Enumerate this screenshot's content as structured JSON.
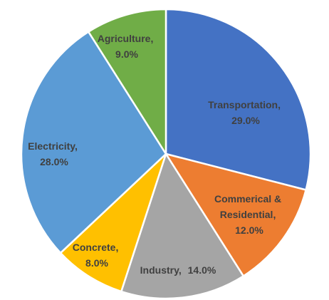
{
  "chart_data": {
    "type": "pie",
    "title": "",
    "slices": [
      {
        "label": "Transportation,",
        "value_label": "29.0%",
        "value": 29.0,
        "color": "#4472c4"
      },
      {
        "label": "Commerical & Residential,",
        "value_label": "12.0%",
        "value": 12.0,
        "color": "#ed7d31"
      },
      {
        "label": "Industry,",
        "value_label": "14.0%",
        "value": 14.0,
        "color": "#a5a5a5"
      },
      {
        "label": "Concrete,",
        "value_label": "8.0%",
        "value": 8.0,
        "color": "#ffc000"
      },
      {
        "label": "Electricity,",
        "value_label": "28.0%",
        "value": 28.0,
        "color": "#5b9bd5"
      },
      {
        "label": "Agriculture,",
        "value_label": "9.0%",
        "value": 9.0,
        "color": "#70ad47"
      }
    ],
    "start_angle_deg": 0,
    "direction": "clockwise",
    "legend": "none",
    "data_labels": "inside"
  }
}
